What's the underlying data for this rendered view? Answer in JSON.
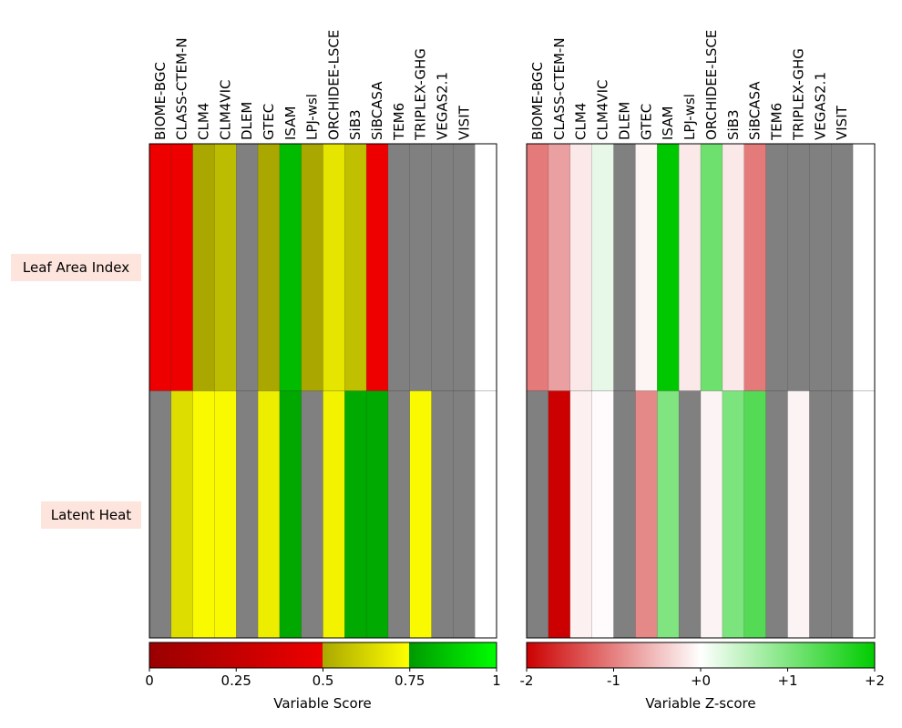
{
  "chart_data": [
    {
      "type": "heatmap",
      "models": [
        "BIOME-BGC",
        "CLASS-CTEM-N",
        "CLM4",
        "CLM4VIC",
        "DLEM",
        "GTEC",
        "ISAM",
        "LPJ-wsl",
        "ORCHIDEE-LSCE",
        "SiB3",
        "SiBCASA",
        "TEM6",
        "TRIPLEX-GHG",
        "VEGAS2.1",
        "VISIT"
      ],
      "variables": [
        "Leaf Area Index",
        "Latent Heat"
      ],
      "cell_colors": [
        [
          "#ee0000",
          "#ee0000",
          "#aaa800",
          "#bcbc00",
          "#808080",
          "#aaa800",
          "#00bb00",
          "#aaa800",
          "#e5e500",
          "#c0c000",
          "#ee0000",
          "#808080",
          "#808080",
          "#808080",
          "#808080",
          "#ffffff"
        ],
        [
          "#808080",
          "#dddd00",
          "#f9f900",
          "#f9f900",
          "#808080",
          "#eded00",
          "#00a800",
          "#808080",
          "#f3f300",
          "#00aa00",
          "#00aa00",
          "#808080",
          "#f9f900",
          "#808080",
          "#808080",
          "#ffffff"
        ]
      ],
      "colorbar": {
        "label": "Variable Score",
        "ticks": [
          "0",
          "0.25",
          "0.5",
          "0.75",
          "1"
        ],
        "range": [
          0,
          1
        ]
      }
    },
    {
      "type": "heatmap",
      "models": [
        "BIOME-BGC",
        "CLASS-CTEM-N",
        "CLM4",
        "CLM4VIC",
        "DLEM",
        "GTEC",
        "ISAM",
        "LPJ-wsl",
        "ORCHIDEE-LSCE",
        "SiB3",
        "SiBCASA",
        "TEM6",
        "TRIPLEX-GHG",
        "VEGAS2.1",
        "VISIT"
      ],
      "variables": [
        "Leaf Area Index",
        "Latent Heat"
      ],
      "cell_colors": [
        [
          "#e57a7a",
          "#eaa0a0",
          "#fbe8e8",
          "#e8f8e8",
          "#808080",
          "#fdf4f4",
          "#00c800",
          "#fbe8e8",
          "#6ee06e",
          "#fbe8e8",
          "#e57a7a",
          "#808080",
          "#808080",
          "#808080",
          "#808080",
          "#ffffff"
        ],
        [
          "#808080",
          "#cc0000",
          "#fcf0f0",
          "#fffbfd",
          "#808080",
          "#e58888",
          "#80e480",
          "#808080",
          "#fcf4f4",
          "#7ce47c",
          "#55da55",
          "#808080",
          "#fcf4f4",
          "#808080",
          "#808080",
          "#ffffff"
        ]
      ],
      "colorbar": {
        "label": "Variable Z-score",
        "ticks": [
          "-2",
          "-1",
          "+0",
          "+1",
          "+2"
        ],
        "range": [
          -2,
          2
        ]
      }
    }
  ],
  "colors": {
    "missing": "#808080",
    "score_scale": [
      "#990000",
      "#ee0000",
      "#aaa800",
      "#ffff00",
      "#009900",
      "#00ff00"
    ],
    "zscore_scale": [
      "#cc0000",
      "#ffffff",
      "#00cc00"
    ]
  }
}
